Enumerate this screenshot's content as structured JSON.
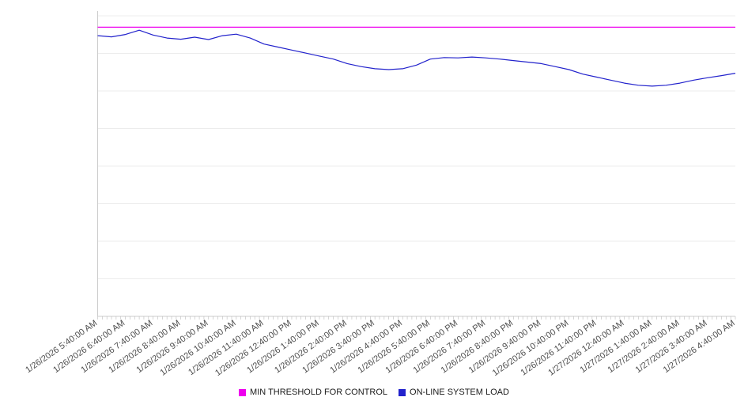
{
  "chart_data": {
    "type": "line",
    "title": "",
    "xlabel": "",
    "ylabel": "",
    "ylim": [
      0,
      100
    ],
    "grid": true,
    "grid_intervals": 8,
    "legend_position": "bottom",
    "x_axis": {
      "hours_span": 23,
      "minor_ticks_per_hour": 6,
      "labels": [
        "1/26/2026 5:40:00 AM",
        "1/26/2026 6:40:00 AM",
        "1/26/2026 7:40:00 AM",
        "1/26/2026 8:40:00 AM",
        "1/26/2026 9:40:00 AM",
        "1/26/2026 10:40:00 AM",
        "1/26/2026 11:40:00 AM",
        "1/26/2026 12:40:00 PM",
        "1/26/2026 1:40:00 PM",
        "1/26/2026 2:40:00 PM",
        "1/26/2026 3:40:00 PM",
        "1/26/2026 4:40:00 PM",
        "1/26/2026 5:40:00 PM",
        "1/26/2026 6:40:00 PM",
        "1/26/2026 7:40:00 PM",
        "1/26/2026 8:40:00 PM",
        "1/26/2026 9:40:00 PM",
        "1/26/2026 10:40:00 PM",
        "1/26/2026 11:40:00 PM",
        "1/27/2026 12:40:00 AM",
        "1/27/2026 1:40:00 AM",
        "1/27/2026 2:40:00 AM",
        "1/27/2026 3:40:00 AM",
        "1/27/2026 4:40:00 AM"
      ]
    },
    "series": [
      {
        "name": "MIN THRESHOLD FOR CONTROL",
        "color": "#ee00ee",
        "step_hours": 23,
        "values": [
          96.2,
          96.2
        ]
      },
      {
        "name": "ON-LINE SYSTEM LOAD",
        "color": "#2222cc",
        "step_hours": 0.5,
        "values": [
          93.4,
          93.0,
          93.8,
          95.2,
          93.6,
          92.6,
          92.2,
          92.9,
          92.1,
          93.4,
          93.9,
          92.6,
          90.6,
          89.6,
          88.6,
          87.6,
          86.6,
          85.6,
          84.1,
          83.1,
          82.4,
          82.1,
          82.4,
          83.6,
          85.6,
          86.1,
          86.0,
          86.3,
          86.0,
          85.6,
          85.1,
          84.6,
          84.1,
          83.1,
          82.1,
          80.6,
          79.6,
          78.6,
          77.6,
          76.9,
          76.6,
          76.9,
          77.6,
          78.6,
          79.4,
          80.1,
          80.9
        ]
      }
    ],
    "colors": {
      "gridline": "#ececec",
      "axis": "#cccccc",
      "tick": "#bbbbbb",
      "label_text": "#4d4d4d"
    }
  },
  "legend": {
    "items": [
      {
        "label": "MIN THRESHOLD FOR CONTROL",
        "color": "#ee00ee"
      },
      {
        "label": "ON-LINE SYSTEM LOAD",
        "color": "#2222cc"
      }
    ]
  }
}
